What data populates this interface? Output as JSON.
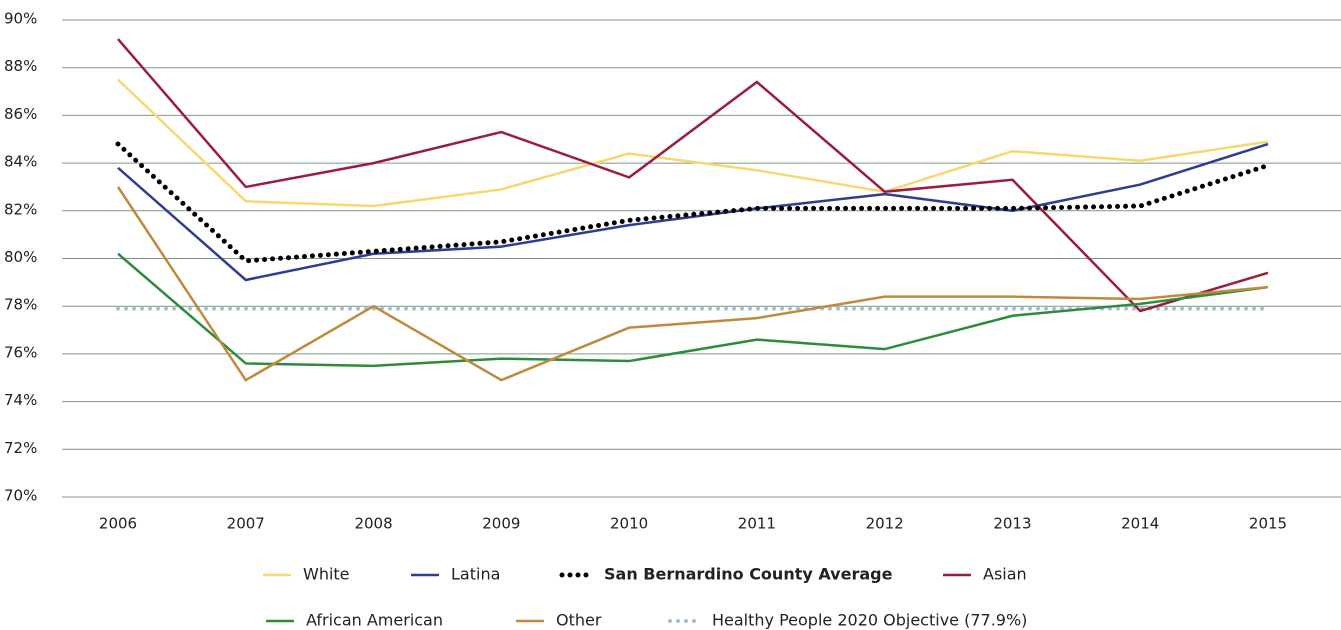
{
  "chart_data": {
    "type": "line",
    "categories": [
      "2006",
      "2007",
      "2008",
      "2009",
      "2010",
      "2011",
      "2012",
      "2013",
      "2014",
      "2015"
    ],
    "series": [
      {
        "name": "White",
        "color": "#f6d873",
        "style": "solid",
        "values": [
          87.5,
          82.4,
          82.2,
          82.9,
          84.4,
          83.7,
          82.8,
          84.5,
          84.1,
          84.9
        ]
      },
      {
        "name": "Latina",
        "color": "#2e3d8f",
        "style": "solid",
        "values": [
          83.8,
          79.1,
          80.2,
          80.5,
          81.4,
          82.1,
          82.7,
          82.0,
          83.1,
          84.8
        ]
      },
      {
        "name": "San Bernardino County Average",
        "color": "#000000",
        "style": "dotted",
        "bold": true,
        "values": [
          84.8,
          79.9,
          80.3,
          80.7,
          81.6,
          82.1,
          82.1,
          82.1,
          82.2,
          83.9
        ]
      },
      {
        "name": "Asian",
        "color": "#9b1c3c",
        "style": "solid",
        "values": [
          89.2,
          83.0,
          84.0,
          85.3,
          83.4,
          87.4,
          82.8,
          83.3,
          77.8,
          79.4
        ]
      },
      {
        "name": "African American",
        "color": "#2e8b3e",
        "style": "solid",
        "values": [
          80.2,
          75.6,
          75.5,
          75.8,
          75.7,
          76.6,
          76.2,
          77.6,
          78.1,
          78.8
        ]
      },
      {
        "name": "Other",
        "color": "#c08a3e",
        "style": "solid",
        "values": [
          83.0,
          74.9,
          78.0,
          74.9,
          77.1,
          77.5,
          78.4,
          78.4,
          78.3,
          78.8
        ]
      },
      {
        "name": "Healthy People 2020 Objective (77.9%)",
        "color": "#a9bfd1",
        "style": "light-dotted",
        "values": [
          77.9,
          77.9,
          77.9,
          77.9,
          77.9,
          77.9,
          77.9,
          77.9,
          77.9,
          77.9
        ]
      }
    ],
    "ylim": [
      70,
      90
    ],
    "yticks": [
      {
        "value": 70,
        "label": "70%"
      },
      {
        "value": 72,
        "label": "72%"
      },
      {
        "value": 74,
        "label": "74%"
      },
      {
        "value": 76,
        "label": "76%"
      },
      {
        "value": 78,
        "label": "78%"
      },
      {
        "value": 80,
        "label": "80%"
      },
      {
        "value": 82,
        "label": "82%"
      },
      {
        "value": 84,
        "label": "84%"
      },
      {
        "value": 86,
        "label": "86%"
      },
      {
        "value": 88,
        "label": "88%"
      },
      {
        "value": 90,
        "label": "90%"
      }
    ],
    "grid": true
  }
}
